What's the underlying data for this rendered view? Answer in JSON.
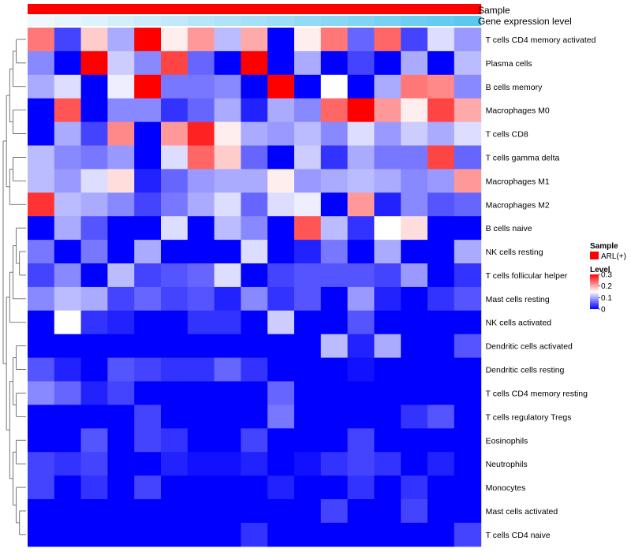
{
  "chart_data": {
    "type": "heatmap",
    "title": "",
    "rows": [
      "T cells CD4 memory activated",
      "Plasma cells",
      "B cells memory",
      "Macrophages M0",
      "T cells CD8",
      "T cells gamma delta",
      "Macrophages M1",
      "Macrophages M2",
      "B cells naive",
      "NK cells resting",
      "T cells follicular helper",
      "Mast cells resting",
      "NK cells activated",
      "Dendritic cells activated",
      "Dendritic cells resting",
      "T cells CD4 memory resting",
      "T cells regulatory  Tregs",
      "Eosinophils",
      "Neutrophils",
      "Monocytes",
      "Mast cells activated",
      "T cells CD4 naive"
    ],
    "n_columns": 17,
    "values": [
      [
        0.23,
        0.04,
        0.18,
        0.1,
        0.3,
        0.16,
        0.21,
        0.11,
        0.2,
        0.0,
        0.16,
        0.23,
        0.06,
        0.24,
        0.04,
        0.13,
        0.09
      ],
      [
        0.08,
        0.0,
        0.3,
        0.12,
        0.08,
        0.26,
        0.06,
        0.0,
        0.3,
        0.0,
        0.1,
        0.0,
        0.04,
        0.0,
        0.1,
        0.0,
        0.11
      ],
      [
        0.1,
        0.13,
        0.0,
        0.14,
        0.3,
        0.07,
        0.07,
        0.08,
        0.0,
        0.3,
        0.0,
        0.15,
        0.0,
        0.1,
        0.23,
        0.22,
        0.08
      ],
      [
        0.0,
        0.25,
        0.0,
        0.08,
        0.08,
        0.03,
        0.06,
        0.1,
        0.02,
        0.1,
        0.08,
        0.24,
        0.3,
        0.21,
        0.16,
        0.26,
        0.2
      ],
      [
        0.0,
        0.1,
        0.04,
        0.22,
        0.0,
        0.21,
        0.28,
        0.16,
        0.1,
        0.09,
        0.11,
        0.08,
        0.13,
        0.09,
        0.12,
        0.1,
        0.13
      ],
      [
        0.11,
        0.08,
        0.07,
        0.09,
        0.0,
        0.13,
        0.24,
        0.18,
        0.06,
        0.0,
        0.12,
        0.03,
        0.1,
        0.07,
        0.07,
        0.26,
        0.06
      ],
      [
        0.11,
        0.09,
        0.13,
        0.17,
        0.02,
        0.06,
        0.09,
        0.1,
        0.1,
        0.16,
        0.09,
        0.1,
        0.11,
        0.1,
        0.08,
        0.09,
        0.21
      ],
      [
        0.27,
        0.11,
        0.1,
        0.08,
        0.04,
        0.07,
        0.1,
        0.13,
        0.06,
        0.13,
        0.14,
        0.0,
        0.21,
        0.02,
        0.08,
        0.05,
        0.06
      ],
      [
        0.0,
        0.1,
        0.05,
        0.0,
        0.0,
        0.13,
        0.0,
        0.11,
        0.08,
        0.0,
        0.25,
        0.11,
        0.03,
        0.15,
        0.17,
        0.0,
        0.0
      ],
      [
        0.07,
        0.0,
        0.07,
        0.0,
        0.1,
        0.0,
        0.0,
        0.0,
        0.13,
        0.0,
        0.02,
        0.07,
        0.0,
        0.1,
        0.0,
        0.0,
        0.1
      ],
      [
        0.04,
        0.08,
        0.0,
        0.11,
        0.04,
        0.05,
        0.06,
        0.13,
        0.0,
        0.04,
        0.05,
        0.05,
        0.05,
        0.04,
        0.09,
        0.0,
        0.03
      ],
      [
        0.08,
        0.11,
        0.1,
        0.04,
        0.06,
        0.04,
        0.05,
        0.02,
        0.08,
        0.03,
        0.05,
        0.0,
        0.09,
        0.02,
        0.0,
        0.03,
        0.05
      ],
      [
        0.0,
        0.15,
        0.03,
        0.02,
        0.0,
        0.0,
        0.03,
        0.03,
        0.0,
        0.12,
        0.0,
        0.0,
        0.05,
        0.0,
        0.0,
        0.0,
        0.0
      ],
      [
        0.0,
        0.0,
        0.0,
        0.0,
        0.0,
        0.0,
        0.0,
        0.0,
        0.0,
        0.0,
        0.0,
        0.11,
        0.02,
        0.1,
        0.0,
        0.0,
        0.05
      ],
      [
        0.05,
        0.02,
        0.0,
        0.05,
        0.04,
        0.03,
        0.03,
        0.06,
        0.03,
        0.0,
        0.0,
        0.0,
        0.01,
        0.0,
        0.0,
        0.0,
        0.0
      ],
      [
        0.08,
        0.06,
        0.02,
        0.04,
        0.0,
        0.0,
        0.0,
        0.0,
        0.0,
        0.06,
        0.0,
        0.0,
        0.0,
        0.0,
        0.0,
        0.0,
        0.0
      ],
      [
        0.0,
        0.0,
        0.0,
        0.0,
        0.04,
        0.0,
        0.0,
        0.0,
        0.0,
        0.07,
        0.0,
        0.0,
        0.0,
        0.0,
        0.03,
        0.05,
        0.0
      ],
      [
        0.0,
        0.0,
        0.05,
        0.0,
        0.04,
        0.03,
        0.0,
        0.0,
        0.04,
        0.0,
        0.0,
        0.0,
        0.04,
        0.0,
        0.0,
        0.0,
        0.0
      ],
      [
        0.04,
        0.03,
        0.04,
        0.0,
        0.0,
        0.02,
        0.01,
        0.01,
        0.02,
        0.0,
        0.01,
        0.03,
        0.04,
        0.03,
        0.0,
        0.02,
        0.0
      ],
      [
        0.04,
        0.0,
        0.03,
        0.0,
        0.04,
        0.0,
        0.0,
        0.0,
        0.0,
        0.02,
        0.0,
        0.0,
        0.03,
        0.0,
        0.03,
        0.0,
        0.0
      ],
      [
        0.0,
        0.0,
        0.0,
        0.0,
        0.0,
        0.0,
        0.0,
        0.0,
        0.0,
        0.0,
        0.0,
        0.04,
        0.0,
        0.0,
        0.04,
        0.0,
        0.0
      ],
      [
        0.0,
        0.0,
        0.0,
        0.0,
        0.0,
        0.0,
        0.0,
        0.0,
        0.03,
        0.0,
        0.0,
        0.0,
        0.0,
        0.0,
        0.0,
        0.0,
        0.04
      ]
    ],
    "value_range": [
      0,
      0.3
    ],
    "color_scale": {
      "low": "#0000ff",
      "mid": "#ffffff",
      "high": "#ff0000"
    },
    "annotations": {
      "sample_label": "Sample",
      "sample_color": "#ff0000",
      "gene_label": "Gene expression level",
      "gene_low": "#f0f8ff",
      "gene_high": "#5bc8f0"
    },
    "legend": {
      "position": "right",
      "sample_title": "Sample",
      "sample_entry": "ARL(+)",
      "level_title": "Level",
      "level_ticks": [
        0.3,
        0.2,
        0.1,
        0
      ],
      "level_tick_labels": [
        "0.3",
        "0.2",
        "0.1",
        "0"
      ]
    },
    "row_dendrogram": true
  }
}
